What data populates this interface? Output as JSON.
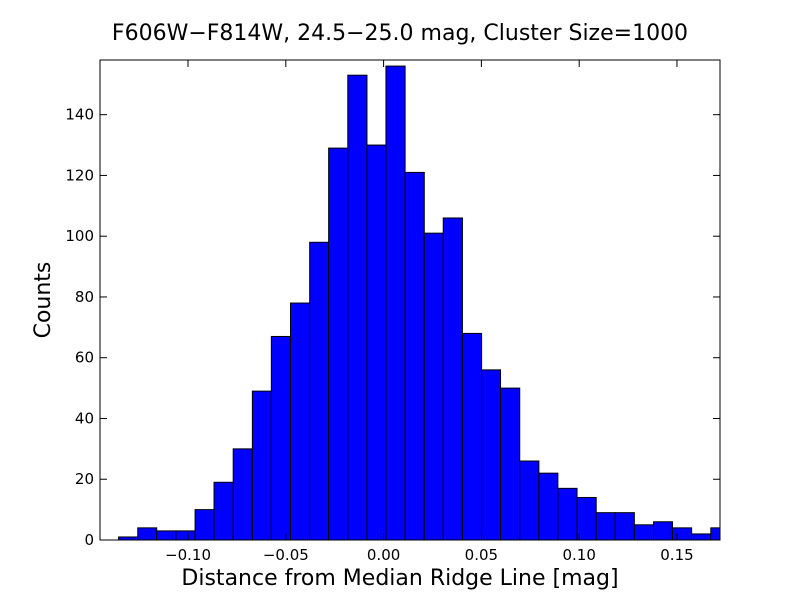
{
  "chart_data": {
    "type": "bar",
    "title": "F606W−F814W, 24.5−25.0 mag, Cluster Size=1000",
    "xlabel": "Distance from Median Ridge Line [mag]",
    "ylabel": "Counts",
    "xlim": [
      -0.145,
      0.172
    ],
    "ylim": [
      0,
      158
    ],
    "grid": false,
    "bar_color": "#0000ff",
    "edge_color": "#000000",
    "bin_start": -0.1355,
    "bin_width": 0.00977,
    "bins": [
      {
        "x0": -0.1355,
        "x1": -0.1257,
        "count": 1
      },
      {
        "x0": -0.1257,
        "x1": -0.116,
        "count": 4
      },
      {
        "x0": -0.116,
        "x1": -0.1062,
        "count": 3
      },
      {
        "x0": -0.1062,
        "x1": -0.0964,
        "count": 3
      },
      {
        "x0": -0.0964,
        "x1": -0.0867,
        "count": 10
      },
      {
        "x0": -0.0867,
        "x1": -0.0769,
        "count": 19
      },
      {
        "x0": -0.0769,
        "x1": -0.0671,
        "count": 30
      },
      {
        "x0": -0.0671,
        "x1": -0.0574,
        "count": 49
      },
      {
        "x0": -0.0574,
        "x1": -0.0476,
        "count": 67
      },
      {
        "x0": -0.0476,
        "x1": -0.0378,
        "count": 78
      },
      {
        "x0": -0.0378,
        "x1": -0.0281,
        "count": 98
      },
      {
        "x0": -0.0281,
        "x1": -0.0183,
        "count": 129
      },
      {
        "x0": -0.0183,
        "x1": -0.0085,
        "count": 153
      },
      {
        "x0": -0.0085,
        "x1": 0.0012,
        "count": 130
      },
      {
        "x0": 0.0012,
        "x1": 0.011,
        "count": 156
      },
      {
        "x0": 0.011,
        "x1": 0.0208,
        "count": 121
      },
      {
        "x0": 0.0208,
        "x1": 0.0305,
        "count": 101
      },
      {
        "x0": 0.0305,
        "x1": 0.0403,
        "count": 106
      },
      {
        "x0": 0.0403,
        "x1": 0.0501,
        "count": 68
      },
      {
        "x0": 0.0501,
        "x1": 0.0598,
        "count": 56
      },
      {
        "x0": 0.0598,
        "x1": 0.0696,
        "count": 50
      },
      {
        "x0": 0.0696,
        "x1": 0.0794,
        "count": 26
      },
      {
        "x0": 0.0794,
        "x1": 0.0891,
        "count": 22
      },
      {
        "x0": 0.0891,
        "x1": 0.0989,
        "count": 17
      },
      {
        "x0": 0.0989,
        "x1": 0.1087,
        "count": 14
      },
      {
        "x0": 0.1087,
        "x1": 0.1184,
        "count": 9
      },
      {
        "x0": 0.1184,
        "x1": 0.1282,
        "count": 9
      },
      {
        "x0": 0.1282,
        "x1": 0.138,
        "count": 5
      },
      {
        "x0": 0.138,
        "x1": 0.1477,
        "count": 6
      },
      {
        "x0": 0.1477,
        "x1": 0.1575,
        "count": 4
      },
      {
        "x0": 0.1575,
        "x1": 0.1673,
        "count": 2
      },
      {
        "x0": 0.1673,
        "x1": 0.177,
        "count": 4
      }
    ],
    "x_ticks": [
      {
        "value": -0.1,
        "label": "−0.10"
      },
      {
        "value": -0.05,
        "label": "−0.05"
      },
      {
        "value": 0.0,
        "label": "0.00"
      },
      {
        "value": 0.05,
        "label": "0.05"
      },
      {
        "value": 0.1,
        "label": "0.10"
      },
      {
        "value": 0.15,
        "label": "0.15"
      }
    ],
    "y_ticks": [
      {
        "value": 0,
        "label": "0"
      },
      {
        "value": 20,
        "label": "20"
      },
      {
        "value": 40,
        "label": "40"
      },
      {
        "value": 60,
        "label": "60"
      },
      {
        "value": 80,
        "label": "80"
      },
      {
        "value": 100,
        "label": "100"
      },
      {
        "value": 120,
        "label": "120"
      },
      {
        "value": 140,
        "label": "140"
      }
    ]
  }
}
